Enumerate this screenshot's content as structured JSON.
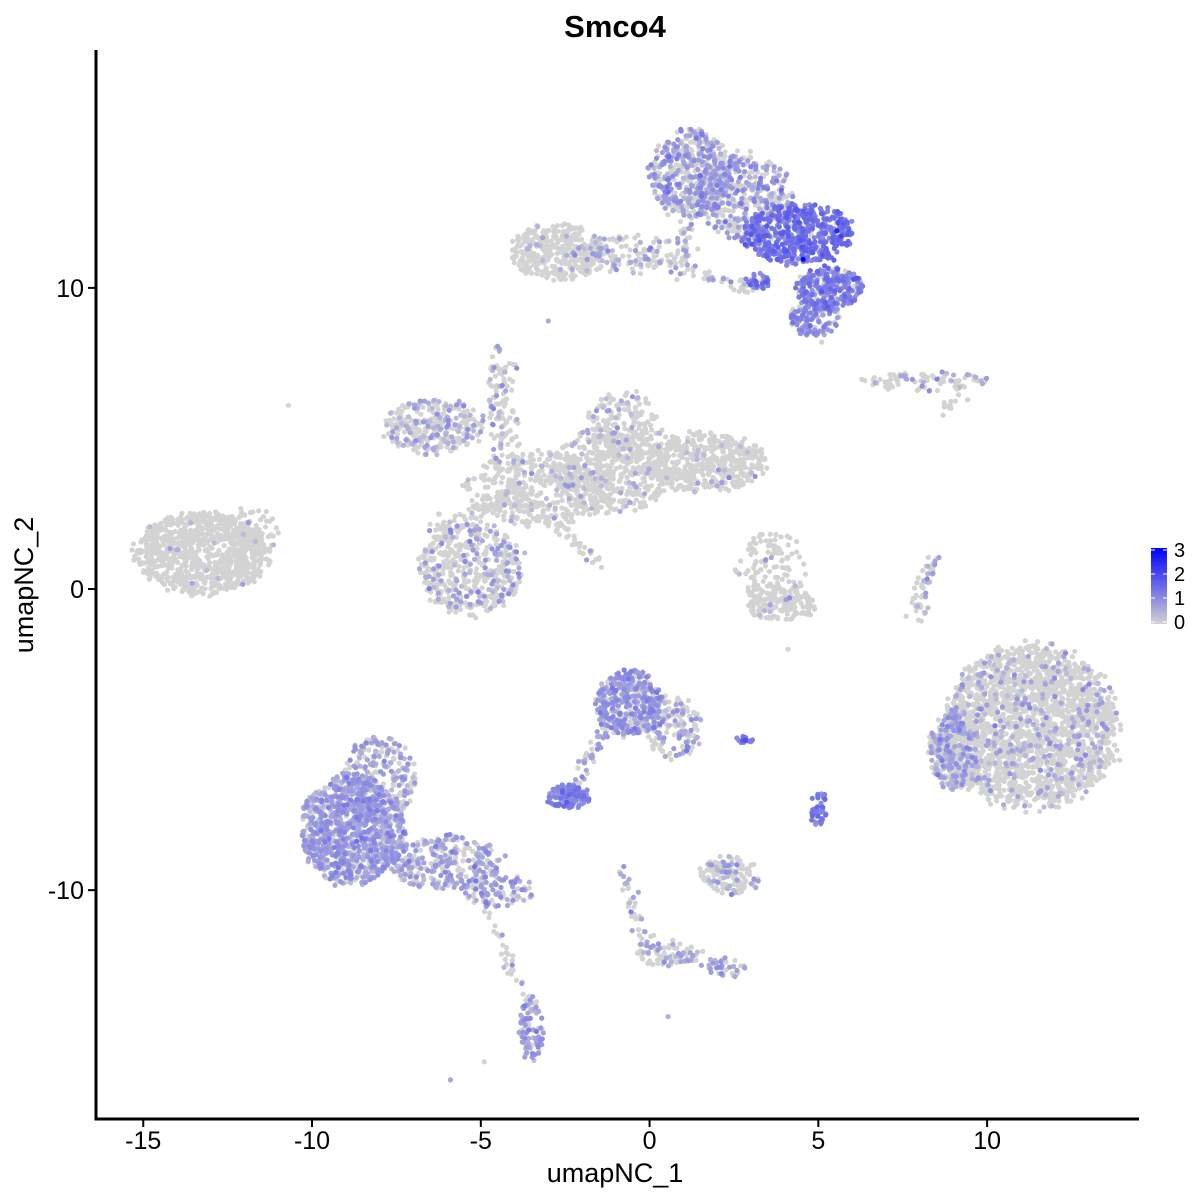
{
  "chart_data": {
    "type": "scatter",
    "title": "Smco4",
    "xlabel": "umapNC_1",
    "ylabel": "umapNC_2",
    "xlim": [
      -16.4,
      14.5
    ],
    "ylim": [
      -17.6,
      17.9
    ],
    "x_ticks": [
      -15,
      -10,
      -5,
      0,
      5,
      10
    ],
    "x_tick_labels": [
      "-15",
      "-10",
      "-5",
      "0",
      "5",
      "10"
    ],
    "y_ticks": [
      -10,
      0,
      10
    ],
    "y_tick_labels": [
      "-10",
      "0",
      "10"
    ],
    "color_scale": {
      "low": "#d3d3d3",
      "high": "#0000ff",
      "domain": [
        0,
        3.2
      ],
      "ticks": [
        0,
        1,
        2,
        3
      ],
      "tick_labels": [
        "0",
        "1",
        "2",
        "3"
      ],
      "legend_position": "right"
    },
    "clusters": [
      {
        "x": -13.2,
        "y": 1.2,
        "sx": 1.1,
        "sy": 0.75,
        "n": 900,
        "expr_rate": 0.01,
        "expr_mean": 0.5
      },
      {
        "x": -11.8,
        "y": 1.9,
        "sx": 0.45,
        "sy": 0.45,
        "n": 80,
        "expr_rate": 0.0,
        "expr_mean": 0.4
      },
      {
        "x": -5.3,
        "y": 0.7,
        "sx": 0.85,
        "sy": 0.85,
        "n": 500,
        "expr_rate": 0.25,
        "expr_mean": 0.7
      },
      {
        "x": -6.4,
        "y": 5.4,
        "sx": 0.8,
        "sy": 0.5,
        "n": 320,
        "expr_rate": 0.3,
        "expr_mean": 0.6
      },
      {
        "x": -3.3,
        "y": 3.3,
        "sx": 1.2,
        "sy": 0.7,
        "n": 420,
        "expr_rate": 0.06,
        "expr_mean": 0.5
      },
      {
        "x": -1.2,
        "y": 3.9,
        "sx": 1.0,
        "sy": 0.75,
        "n": 420,
        "expr_rate": 0.12,
        "expr_mean": 0.5
      },
      {
        "x": -0.8,
        "y": 5.4,
        "sx": 0.6,
        "sy": 0.65,
        "n": 200,
        "expr_rate": 0.2,
        "expr_mean": 0.6
      },
      {
        "x": 1.6,
        "y": 4.2,
        "sx": 1.0,
        "sy": 0.55,
        "n": 480,
        "expr_rate": 0.05,
        "expr_mean": 0.5
      },
      {
        "x": -4.5,
        "y": 6.2,
        "sx": 0.15,
        "sy": 1.1,
        "n": 80,
        "expr_rate": 0.2,
        "expr_mean": 0.6
      },
      {
        "x": -2.7,
        "y": 11.2,
        "sx": 0.8,
        "sy": 0.5,
        "n": 360,
        "expr_rate": 0.04,
        "expr_mean": 0.5
      },
      {
        "x": -0.5,
        "y": 11.1,
        "sx": 1.0,
        "sy": 0.35,
        "n": 120,
        "expr_rate": 0.3,
        "expr_mean": 0.6
      },
      {
        "x": 1.2,
        "y": 13.8,
        "sx": 0.7,
        "sy": 0.8,
        "n": 500,
        "expr_rate": 0.55,
        "expr_mean": 0.8
      },
      {
        "x": 2.8,
        "y": 13.0,
        "sx": 0.8,
        "sy": 0.8,
        "n": 400,
        "expr_rate": 0.5,
        "expr_mean": 0.8
      },
      {
        "x": 4.4,
        "y": 11.8,
        "sx": 0.9,
        "sy": 0.55,
        "n": 550,
        "expr_rate": 0.85,
        "expr_mean": 1.4
      },
      {
        "x": 5.3,
        "y": 10.0,
        "sx": 0.55,
        "sy": 0.4,
        "n": 250,
        "expr_rate": 0.85,
        "expr_mean": 1.2
      },
      {
        "x": 4.9,
        "y": 9.0,
        "sx": 0.4,
        "sy": 0.35,
        "n": 120,
        "expr_rate": 0.7,
        "expr_mean": 1.0
      },
      {
        "x": 3.2,
        "y": 10.2,
        "sx": 0.2,
        "sy": 0.15,
        "n": 30,
        "expr_rate": 0.9,
        "expr_mean": 1.3
      },
      {
        "x": 8.2,
        "y": 6.9,
        "sx": 1.0,
        "sy": 0.2,
        "n": 90,
        "expr_rate": 0.3,
        "expr_mean": 0.6
      },
      {
        "x": 3.6,
        "y": 0.5,
        "sx": 0.6,
        "sy": 0.8,
        "n": 150,
        "expr_rate": 0.05,
        "expr_mean": 0.5
      },
      {
        "x": 3.9,
        "y": -0.5,
        "sx": 0.6,
        "sy": 0.3,
        "n": 120,
        "expr_rate": 0.05,
        "expr_mean": 0.5
      },
      {
        "x": 11.3,
        "y": -4.6,
        "sx": 1.4,
        "sy": 1.5,
        "n": 2200,
        "expr_rate": 0.12,
        "expr_mean": 0.6
      },
      {
        "x": 9.0,
        "y": -5.4,
        "sx": 0.4,
        "sy": 0.7,
        "n": 300,
        "expr_rate": 0.55,
        "expr_mean": 0.7
      },
      {
        "x": -8.8,
        "y": -8.0,
        "sx": 0.85,
        "sy": 1.0,
        "n": 1000,
        "expr_rate": 0.75,
        "expr_mean": 0.75
      },
      {
        "x": -8.0,
        "y": -6.3,
        "sx": 0.6,
        "sy": 0.8,
        "n": 300,
        "expr_rate": 0.6,
        "expr_mean": 0.7
      },
      {
        "x": -6.0,
        "y": -9.1,
        "sx": 1.0,
        "sy": 0.5,
        "n": 300,
        "expr_rate": 0.55,
        "expr_mean": 0.7
      },
      {
        "x": -4.5,
        "y": -10.0,
        "sx": 0.6,
        "sy": 0.3,
        "n": 100,
        "expr_rate": 0.6,
        "expr_mean": 0.8
      },
      {
        "x": -3.5,
        "y": -14.6,
        "sx": 0.2,
        "sy": 0.6,
        "n": 90,
        "expr_rate": 0.7,
        "expr_mean": 0.8
      },
      {
        "x": -0.6,
        "y": -3.8,
        "sx": 0.55,
        "sy": 0.6,
        "n": 400,
        "expr_rate": 0.6,
        "expr_mean": 0.85
      },
      {
        "x": 0.7,
        "y": -4.6,
        "sx": 0.45,
        "sy": 0.6,
        "n": 150,
        "expr_rate": 0.45,
        "expr_mean": 0.7
      },
      {
        "x": -2.4,
        "y": -6.9,
        "sx": 0.35,
        "sy": 0.22,
        "n": 130,
        "expr_rate": 0.9,
        "expr_mean": 1.1
      },
      {
        "x": 2.4,
        "y": -9.5,
        "sx": 0.5,
        "sy": 0.35,
        "n": 140,
        "expr_rate": 0.25,
        "expr_mean": 0.6
      },
      {
        "x": 5.0,
        "y": -7.3,
        "sx": 0.15,
        "sy": 0.3,
        "n": 40,
        "expr_rate": 0.95,
        "expr_mean": 1.2
      },
      {
        "x": 2.8,
        "y": -5.0,
        "sx": 0.2,
        "sy": 0.06,
        "n": 15,
        "expr_rate": 1.0,
        "expr_mean": 1.4
      },
      {
        "x": 0.5,
        "y": -12.1,
        "sx": 0.5,
        "sy": 0.25,
        "n": 50,
        "expr_rate": 0.4,
        "expr_mean": 0.7
      },
      {
        "x": 2.3,
        "y": -12.6,
        "sx": 0.3,
        "sy": 0.2,
        "n": 25,
        "expr_rate": 0.5,
        "expr_mean": 0.7
      }
    ],
    "trails": [
      {
        "x1": -6.5,
        "y1": 2.0,
        "x2": -3.5,
        "y2": 3.2,
        "n": 50,
        "expr_rate": 0.15
      },
      {
        "x1": -3.2,
        "y1": 2.6,
        "x2": -1.4,
        "y2": 0.8,
        "n": 40,
        "expr_rate": 0.05
      },
      {
        "x1": -4.2,
        "y1": 7.6,
        "x2": -3.9,
        "y2": 3.5,
        "n": 40,
        "expr_rate": 0.1
      },
      {
        "x1": -0.5,
        "y1": 11.2,
        "x2": 3.0,
        "y2": 9.9,
        "n": 60,
        "expr_rate": 0.35
      },
      {
        "x1": 1.2,
        "y1": 12.8,
        "x2": 1.0,
        "y2": 11.0,
        "n": 30,
        "expr_rate": 0.3
      },
      {
        "x1": -1.3,
        "y1": -4.6,
        "x2": -2.3,
        "y2": -6.8,
        "n": 40,
        "expr_rate": 0.7
      },
      {
        "x1": -0.9,
        "y1": -9.2,
        "x2": -0.2,
        "y2": -11.8,
        "n": 40,
        "expr_rate": 0.3
      },
      {
        "x1": 0.3,
        "y1": -12.0,
        "x2": 2.3,
        "y2": -12.6,
        "n": 40,
        "expr_rate": 0.45
      },
      {
        "x1": -5.0,
        "y1": -10.1,
        "x2": -3.4,
        "y2": -14.2,
        "n": 40,
        "expr_rate": 0.15
      },
      {
        "x1": 8.1,
        "y1": -1.0,
        "x2": 7.9,
        "y2": -0.4,
        "n": 20,
        "expr_rate": 0.3
      },
      {
        "x1": 8.5,
        "y1": 1.2,
        "x2": 7.9,
        "y2": -0.6,
        "n": 30,
        "expr_rate": 0.4
      },
      {
        "x1": 9.2,
        "y1": 6.4,
        "x2": 8.7,
        "y2": 5.9,
        "n": 12,
        "expr_rate": 0.1
      }
    ],
    "singles": [
      {
        "x": -10.7,
        "y": 6.1,
        "v": 0
      },
      {
        "x": -3.0,
        "y": 8.9,
        "v": 0.6
      },
      {
        "x": -5.9,
        "y": -16.3,
        "v": 0.7
      },
      {
        "x": -4.9,
        "y": -15.7,
        "v": 0
      },
      {
        "x": 0.55,
        "y": -14.2,
        "v": 0.5
      },
      {
        "x": 4.1,
        "y": -2.0,
        "v": 0
      },
      {
        "x": 7.6,
        "y": -0.9,
        "v": 0
      },
      {
        "x": 4.55,
        "y": 10.95,
        "v": 3.1
      },
      {
        "x": 5.55,
        "y": 11.9,
        "v": 2.6
      },
      {
        "x": 5.1,
        "y": 8.2,
        "v": 0
      }
    ]
  }
}
